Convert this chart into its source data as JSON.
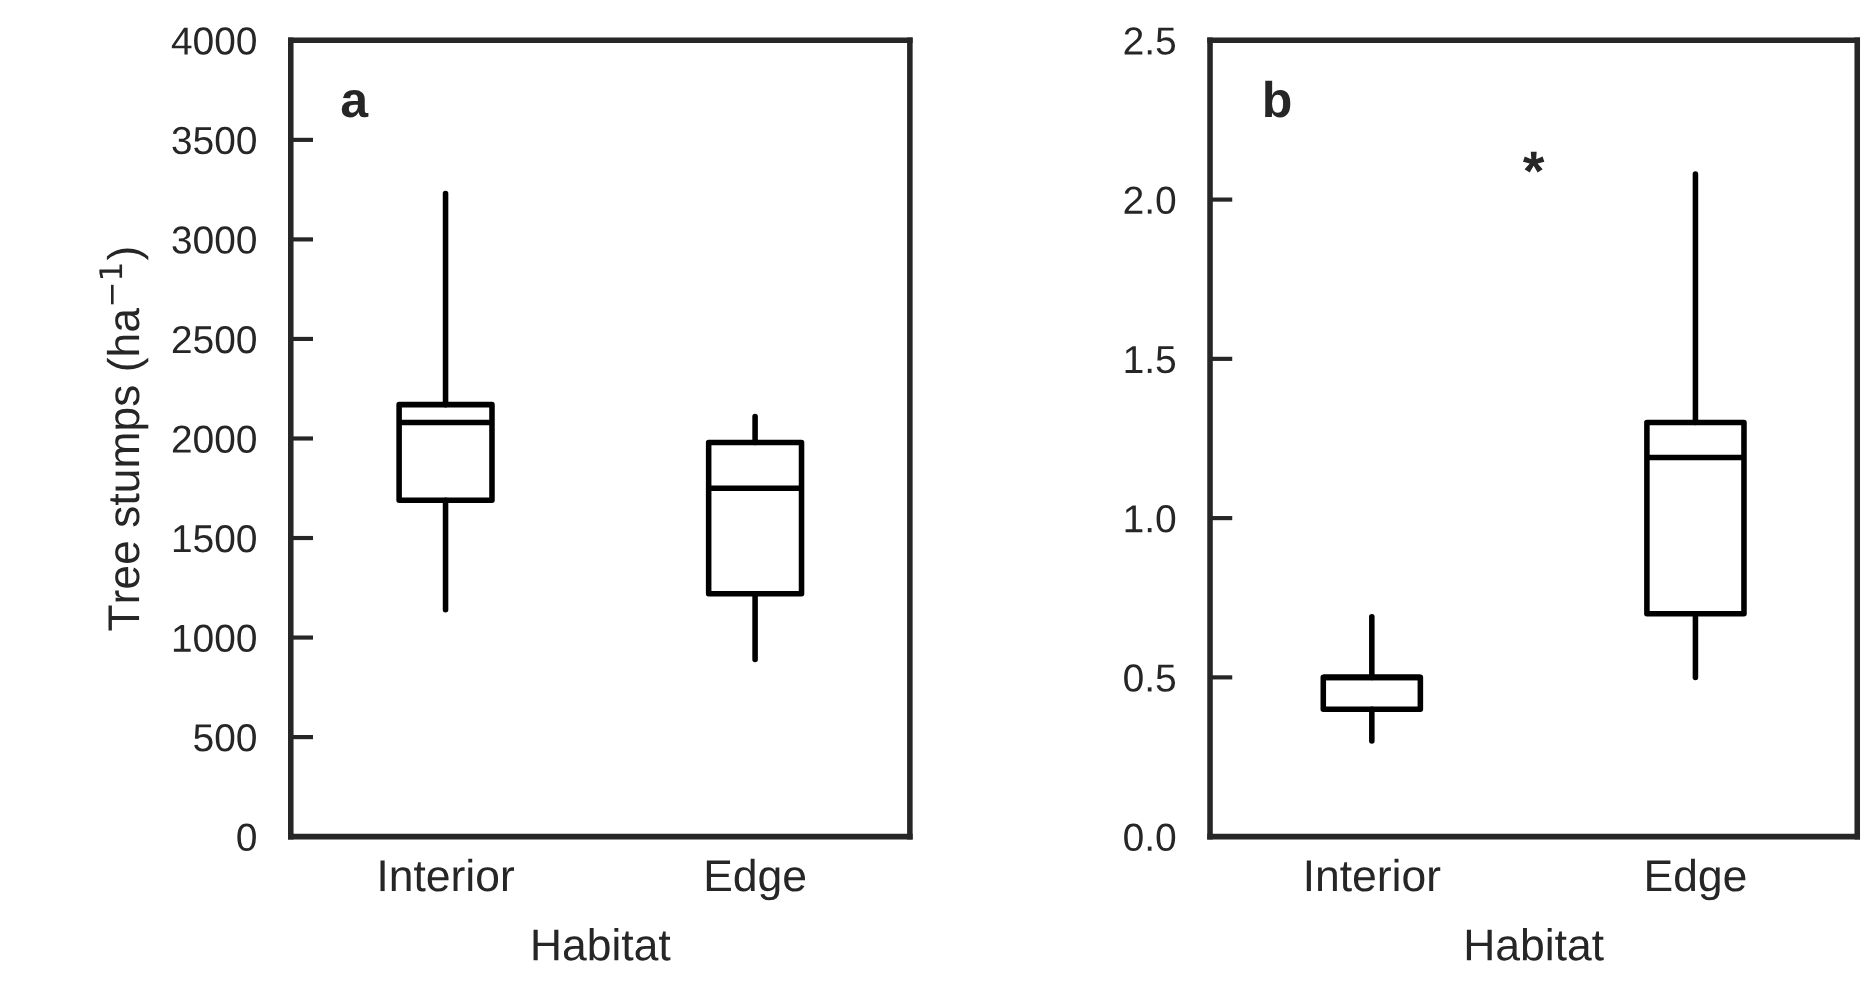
{
  "chart_data": [
    {
      "type": "box",
      "title": "a",
      "categories": [
        "Interior",
        "Edge"
      ],
      "xlabel": "Habitat",
      "ylabel": "Tree stumps (ha$^{−1}$)",
      "boxes": [
        {
          "low": 1140,
          "q1": 1690,
          "median": 2080,
          "q3": 2170,
          "high": 3230
        },
        {
          "low": 890,
          "q1": 1220,
          "median": 1750,
          "q3": 1980,
          "high": 2110
        }
      ],
      "ylim": [
        0,
        4000
      ],
      "yticks": [
        0,
        500,
        1000,
        1500,
        2000,
        2500,
        3000,
        3500,
        4000
      ],
      "grid": false
    },
    {
      "type": "box",
      "title": "b",
      "categories": [
        "Interior",
        "Edge"
      ],
      "xlabel": "Habitat",
      "annotations": [
        "*"
      ],
      "boxes": [
        {
          "low": 0.3,
          "q1": 0.4,
          "median": 0.5,
          "q3": 0.5,
          "high": 0.69
        },
        {
          "low": 0.5,
          "q1": 0.7,
          "median": 1.19,
          "q3": 1.3,
          "high": 2.08
        }
      ],
      "ylim": [
        0,
        2.5
      ],
      "yticks": [
        {
          "value": 0,
          "label": "0.0"
        },
        0.5,
        {
          "value": 1,
          "label": "1.0"
        },
        1.5,
        {
          "value": 2,
          "label": "2.0"
        },
        2.5
      ],
      "grid": false
    }
  ]
}
